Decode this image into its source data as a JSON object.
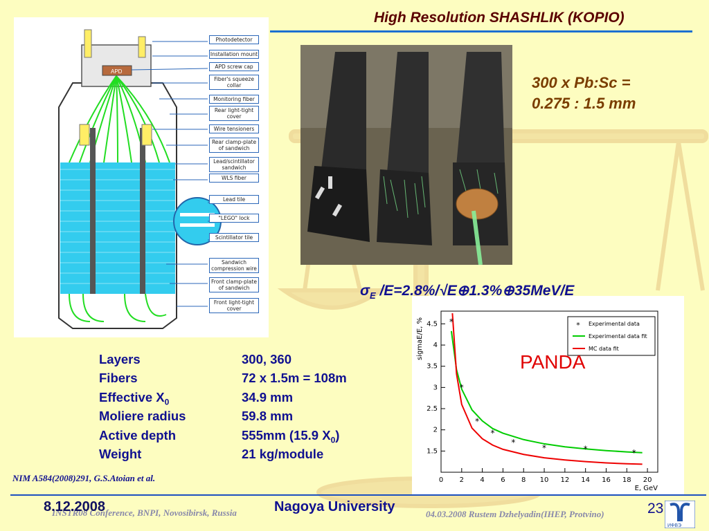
{
  "slide": {
    "title": "High Resolution SHASHLIK (KOPIO)",
    "pbsc_note": "300 x Pb:Sc =\n0.275 : 1.5 mm",
    "formula": {
      "sigma": "σ",
      "sub": "E",
      "rest": " /E=2.8%/√E⊕1.3%⊕35MeV/E"
    },
    "panda_label": "PANDA",
    "citation": "NIM A584(2008)291,  G.S.Atoian et al.",
    "specs": [
      {
        "name": "Layers",
        "value": "300, 360"
      },
      {
        "name": "Fibers",
        "value": "72 x 1.5m = 108m"
      },
      {
        "name": "Effective X",
        "name_sub": "0",
        "value": "34.9 mm"
      },
      {
        "name": "Moliere radius",
        "value": "59.8 mm"
      },
      {
        "name": "Active depth",
        "value": "555mm (15.9 X",
        "value_sub": "0",
        "value_end": ")"
      },
      {
        "name": "Weight",
        "value": "21 kg/module"
      }
    ]
  },
  "diagram": {
    "apd_label": "APD",
    "labels": [
      "Photodetector",
      "Installation mount",
      "APD screw cap",
      "Fiber's squeeze collar",
      "Monitoring fiber",
      "Rear light-tight cover",
      "Wire tensioners",
      "Rear clamp-plate of sandwich",
      "Lead/scintillator sandwich",
      "WLS fiber",
      "Lead tile",
      "\"LEGO\" lock",
      "Scintillator tile",
      "Sandwich compression wire",
      "Front clamp-plate of sandwich",
      "Front light-tight cover"
    ]
  },
  "chart_data": {
    "type": "scatter",
    "xlabel": "E, GeV",
    "ylabel": "sigmaE/E, %",
    "xlim": [
      0,
      21
    ],
    "ylim": [
      1.0,
      4.8
    ],
    "x_ticks": [
      "0",
      "2",
      "4",
      "6",
      "8",
      "10",
      "12",
      "14",
      "16",
      "18",
      "20"
    ],
    "y_ticks": [
      "1.5",
      "2",
      "2.5",
      "3",
      "3.5",
      "4",
      "4.5"
    ],
    "legend": [
      "Experimental data",
      "Experimental data fit",
      "MC data fit"
    ],
    "legend_position": "top-right",
    "series": [
      {
        "name": "Experimental data",
        "x": [
          1.0,
          2.0,
          3.5,
          5.0,
          7.0,
          10.0,
          14.0,
          18.7
        ],
        "y": [
          4.55,
          3.0,
          2.2,
          1.92,
          1.7,
          1.57,
          1.55,
          1.46
        ]
      },
      {
        "name": "Experimental data fit",
        "x": [
          1.0,
          1.5,
          2.0,
          3.0,
          4.0,
          5.0,
          6.0,
          8.0,
          10.0,
          12.0,
          14.0,
          16.0,
          18.0,
          19.5
        ],
        "y": [
          4.33,
          3.42,
          2.96,
          2.47,
          2.21,
          2.03,
          1.92,
          1.77,
          1.67,
          1.6,
          1.55,
          1.51,
          1.48,
          1.46
        ]
      },
      {
        "name": "MC data fit",
        "x": [
          1.1,
          1.5,
          2.0,
          3.0,
          4.0,
          5.0,
          6.0,
          8.0,
          10.0,
          12.0,
          14.0,
          16.0,
          18.0,
          19.5
        ],
        "y": [
          4.75,
          3.32,
          2.6,
          2.04,
          1.79,
          1.64,
          1.54,
          1.42,
          1.34,
          1.29,
          1.25,
          1.22,
          1.2,
          1.19
        ]
      }
    ],
    "colors": {
      "data": "#000000",
      "exp_fit": "#00cc00",
      "mc_fit": "#ee0000"
    }
  },
  "footer": {
    "date": "8.12.2008",
    "conference": "INSTR08 Conference, BNPI, Novosibirsk, Russia",
    "organization": "Nagoya University",
    "author": "04.03.2008 Rustem Dzhelyadin(IHEP, Protvino)",
    "page": "23",
    "logo_text": "ИФВЭ"
  }
}
